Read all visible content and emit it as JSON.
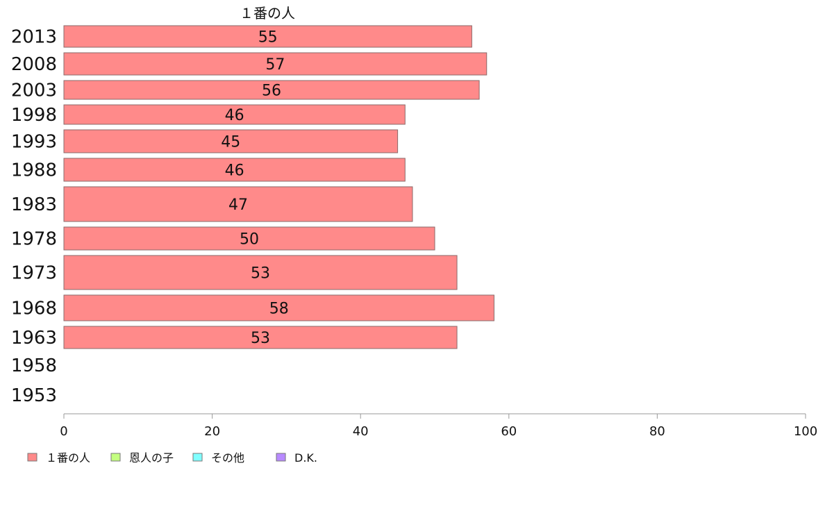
{
  "chart_data": {
    "type": "bar",
    "orientation": "horizontal",
    "title": "１番の人",
    "categories": [
      "2013",
      "2008",
      "2003",
      "1998",
      "1993",
      "1988",
      "1983",
      "1978",
      "1973",
      "1968",
      "1963",
      "1958",
      "1953"
    ],
    "series": [
      {
        "name": "１番の人",
        "color": "#ff8a8a",
        "values": [
          55,
          57,
          56,
          46,
          45,
          46,
          47,
          50,
          53,
          58,
          53,
          null,
          null
        ]
      },
      {
        "name": "恩人の子",
        "color": "#c4ff80",
        "values": [
          null,
          null,
          null,
          null,
          null,
          null,
          null,
          null,
          null,
          null,
          null,
          null,
          null
        ]
      },
      {
        "name": "その他",
        "color": "#80ffff",
        "values": [
          null,
          null,
          null,
          null,
          null,
          null,
          null,
          null,
          null,
          null,
          null,
          null,
          null
        ]
      },
      {
        "name": "D.K.",
        "color": "#b88aff",
        "values": [
          null,
          null,
          null,
          null,
          null,
          null,
          null,
          null,
          null,
          null,
          null,
          null,
          null
        ]
      }
    ],
    "bar_labels": [
      "55",
      "57",
      "56",
      "46",
      "45",
      "46",
      "47",
      "50",
      "53",
      "58",
      "53",
      "",
      ""
    ],
    "xlim": [
      0,
      100
    ],
    "xticks": [
      0,
      20,
      40,
      60,
      80,
      100
    ],
    "grid": false,
    "legend_position": "bottom-left"
  }
}
